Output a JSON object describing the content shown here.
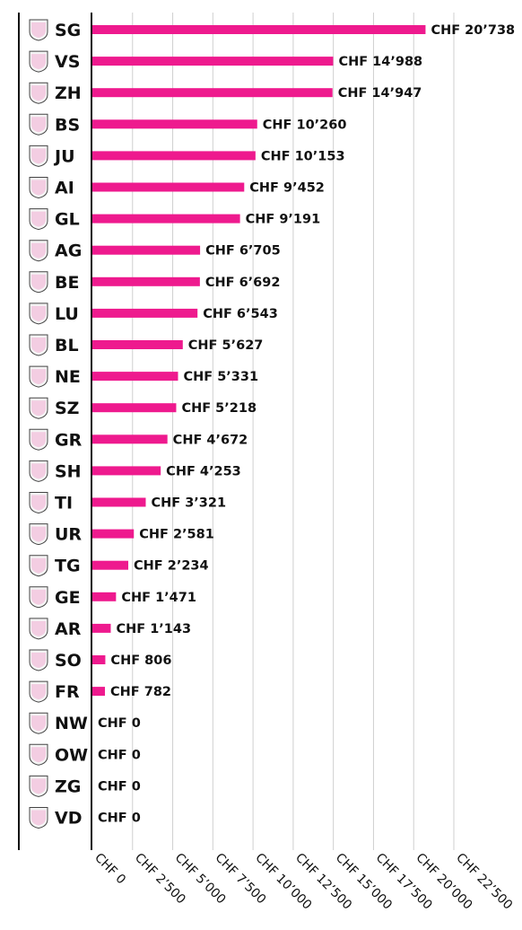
{
  "chart_data": {
    "type": "bar",
    "orientation": "horizontal",
    "bar_color": "#ee1a8e",
    "value_prefix": "CHF ",
    "thousands_separator": "’",
    "xlim": [
      0,
      22500
    ],
    "grid": true,
    "categories": [
      "SG",
      "VS",
      "ZH",
      "BS",
      "JU",
      "AI",
      "GL",
      "AG",
      "BE",
      "LU",
      "BL",
      "NE",
      "SZ",
      "GR",
      "SH",
      "TI",
      "UR",
      "TG",
      "GE",
      "AR",
      "SO",
      "FR",
      "NW",
      "OW",
      "ZG",
      "VD"
    ],
    "values": [
      20738,
      14988,
      14947,
      10260,
      10153,
      9452,
      9191,
      6705,
      6692,
      6543,
      5627,
      5331,
      5218,
      4672,
      4253,
      3321,
      2581,
      2234,
      1471,
      1143,
      806,
      782,
      0,
      0,
      0,
      0
    ],
    "value_labels": [
      "CHF 20’738",
      "CHF 14’988",
      "CHF 14’947",
      "CHF 10’260",
      "CHF 10’153",
      "CHF 9’452",
      "CHF 9’191",
      "CHF 6’705",
      "CHF 6’692",
      "CHF 6’543",
      "CHF 5’627",
      "CHF 5’331",
      "CHF 5’218",
      "CHF 4’672",
      "CHF 4’253",
      "CHF 3’321",
      "CHF 2’581",
      "CHF 2’234",
      "CHF 1’471",
      "CHF 1’143",
      "CHF 806",
      "CHF 782",
      "CHF 0",
      "CHF 0",
      "CHF 0",
      "CHF 0"
    ],
    "x_ticks": [
      0,
      2500,
      5000,
      7500,
      10000,
      12500,
      15000,
      17500,
      20000,
      22500
    ],
    "x_tick_labels": [
      "CHF 0",
      "CHF 2’500",
      "CHF 5’000",
      "CHF 7’500",
      "CHF 10’000",
      "CHF 12’500",
      "CHF 15’000",
      "CHF 17’500",
      "CHF 20’000",
      "CHF 22’500"
    ],
    "category_icons": [
      "sg-coat-of-arms-icon",
      "vs-coat-of-arms-icon",
      "zh-coat-of-arms-icon",
      "bs-coat-of-arms-icon",
      "ju-coat-of-arms-icon",
      "ai-coat-of-arms-icon",
      "gl-coat-of-arms-icon",
      "ag-coat-of-arms-icon",
      "be-coat-of-arms-icon",
      "lu-coat-of-arms-icon",
      "bl-coat-of-arms-icon",
      "ne-coat-of-arms-icon",
      "sz-coat-of-arms-icon",
      "gr-coat-of-arms-icon",
      "sh-coat-of-arms-icon",
      "ti-coat-of-arms-icon",
      "ur-coat-of-arms-icon",
      "tg-coat-of-arms-icon",
      "ge-coat-of-arms-icon",
      "ar-coat-of-arms-icon",
      "so-coat-of-arms-icon",
      "fr-coat-of-arms-icon",
      "nw-coat-of-arms-icon",
      "ow-coat-of-arms-icon",
      "zg-coat-of-arms-icon",
      "vd-coat-of-arms-icon"
    ]
  }
}
